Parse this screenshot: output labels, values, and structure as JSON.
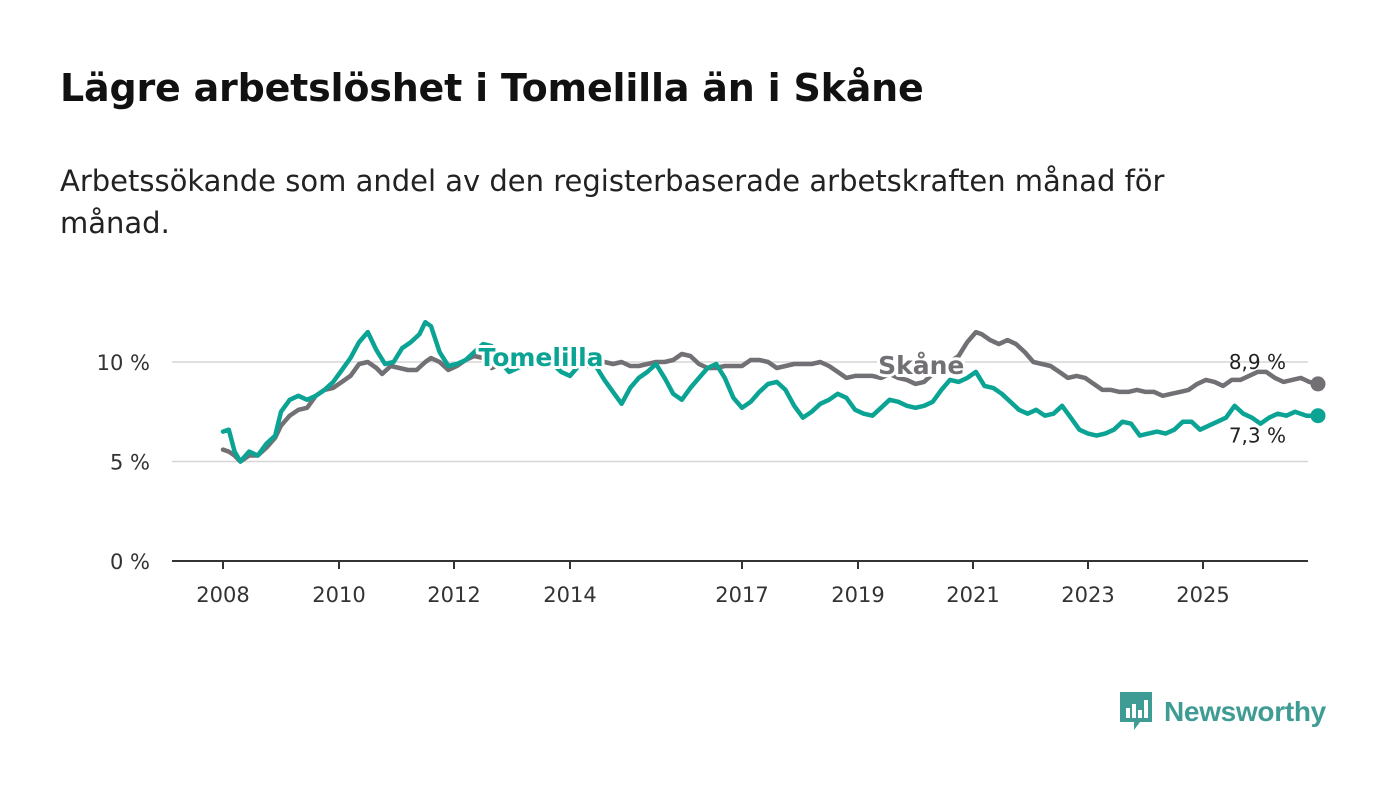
{
  "title": "Lägre arbetslöshet i Tomelilla än i Skåne",
  "subtitle": "Arbetssökande som andel av den registerbaserade arbetskraften månad för månad.",
  "brand": {
    "name": "Newsworthy",
    "icon": "newsworthy-logo-icon",
    "color": "#3f9c95"
  },
  "chart_data": {
    "type": "line",
    "title": "Lägre arbetslöshet i Tomelilla än i Skåne",
    "subtitle": "Arbetssökande som andel av den registerbaserade arbetskraften månad för månad.",
    "xlabel": "",
    "ylabel": "",
    "xlim": [
      2008,
      2026
    ],
    "ylim": [
      0,
      12.5
    ],
    "y_ticks": [
      0,
      5,
      10
    ],
    "y_tick_labels": [
      "0 %",
      "5 %",
      "10 %"
    ],
    "x_ticks": [
      2008,
      2010,
      2012,
      2014,
      2017,
      2019,
      2021,
      2023,
      2025
    ],
    "x_tick_labels": [
      "2008",
      "2010",
      "2012",
      "2014",
      "2017",
      "2019",
      "2021",
      "2023",
      "2025"
    ],
    "grid": true,
    "series": [
      {
        "name": "Skåne",
        "color": "#727074",
        "end_label": "8,9 %",
        "points": [
          [
            2008.0,
            5.6
          ],
          [
            2008.1,
            5.5
          ],
          [
            2008.2,
            5.3
          ],
          [
            2008.3,
            5.0
          ],
          [
            2008.45,
            5.3
          ],
          [
            2008.6,
            5.3
          ],
          [
            2008.75,
            5.7
          ],
          [
            2008.9,
            6.2
          ],
          [
            2009.0,
            6.8
          ],
          [
            2009.15,
            7.3
          ],
          [
            2009.3,
            7.6
          ],
          [
            2009.45,
            7.7
          ],
          [
            2009.6,
            8.3
          ],
          [
            2009.75,
            8.6
          ],
          [
            2009.9,
            8.7
          ],
          [
            2010.05,
            9.0
          ],
          [
            2010.2,
            9.3
          ],
          [
            2010.35,
            9.9
          ],
          [
            2010.5,
            10.0
          ],
          [
            2010.65,
            9.7
          ],
          [
            2010.75,
            9.4
          ],
          [
            2010.9,
            9.8
          ],
          [
            2011.05,
            9.7
          ],
          [
            2011.2,
            9.6
          ],
          [
            2011.35,
            9.6
          ],
          [
            2011.5,
            10.0
          ],
          [
            2011.6,
            10.2
          ],
          [
            2011.75,
            10.0
          ],
          [
            2011.9,
            9.6
          ],
          [
            2012.05,
            9.8
          ],
          [
            2012.2,
            10.1
          ],
          [
            2012.35,
            10.3
          ],
          [
            2012.5,
            10.2
          ],
          [
            2012.65,
            9.7
          ],
          [
            2012.8,
            9.9
          ],
          [
            2012.95,
            10.1
          ],
          [
            2013.1,
            10.2
          ],
          [
            2013.25,
            10.3
          ],
          [
            2013.4,
            10.2
          ],
          [
            2013.55,
            10.0
          ],
          [
            2013.7,
            10.1
          ],
          [
            2013.85,
            10.2
          ],
          [
            2014.0,
            10.0
          ],
          [
            2014.15,
            10.0
          ],
          [
            2014.3,
            9.8
          ],
          [
            2014.45,
            9.9
          ],
          [
            2014.6,
            10.0
          ],
          [
            2014.75,
            9.9
          ],
          [
            2014.9,
            10.0
          ],
          [
            2015.05,
            9.8
          ],
          [
            2015.2,
            9.8
          ],
          [
            2015.35,
            9.9
          ],
          [
            2015.5,
            10.0
          ],
          [
            2015.65,
            10.0
          ],
          [
            2015.8,
            10.1
          ],
          [
            2015.95,
            10.4
          ],
          [
            2016.1,
            10.3
          ],
          [
            2016.25,
            9.9
          ],
          [
            2016.4,
            9.7
          ],
          [
            2016.55,
            9.7
          ],
          [
            2016.7,
            9.8
          ],
          [
            2016.85,
            9.8
          ],
          [
            2017.0,
            9.8
          ],
          [
            2017.15,
            10.1
          ],
          [
            2017.3,
            10.1
          ],
          [
            2017.45,
            10.0
          ],
          [
            2017.6,
            9.7
          ],
          [
            2017.75,
            9.8
          ],
          [
            2017.9,
            9.9
          ],
          [
            2018.05,
            9.9
          ],
          [
            2018.2,
            9.9
          ],
          [
            2018.35,
            10.0
          ],
          [
            2018.5,
            9.8
          ],
          [
            2018.65,
            9.5
          ],
          [
            2018.8,
            9.2
          ],
          [
            2018.95,
            9.3
          ],
          [
            2019.1,
            9.3
          ],
          [
            2019.25,
            9.3
          ],
          [
            2019.4,
            9.2
          ],
          [
            2019.55,
            9.4
          ],
          [
            2019.7,
            9.2
          ],
          [
            2019.85,
            9.1
          ],
          [
            2020.0,
            8.9
          ],
          [
            2020.15,
            9.0
          ],
          [
            2020.3,
            9.4
          ],
          [
            2020.45,
            9.7
          ],
          [
            2020.6,
            10.0
          ],
          [
            2020.75,
            10.3
          ],
          [
            2020.9,
            11.0
          ],
          [
            2021.05,
            11.5
          ],
          [
            2021.15,
            11.4
          ],
          [
            2021.3,
            11.1
          ],
          [
            2021.45,
            10.9
          ],
          [
            2021.6,
            11.1
          ],
          [
            2021.75,
            10.9
          ],
          [
            2021.9,
            10.5
          ],
          [
            2022.05,
            10.0
          ],
          [
            2022.2,
            9.9
          ],
          [
            2022.35,
            9.8
          ],
          [
            2022.5,
            9.5
          ],
          [
            2022.65,
            9.2
          ],
          [
            2022.8,
            9.3
          ],
          [
            2022.95,
            9.2
          ],
          [
            2023.1,
            8.9
          ],
          [
            2023.25,
            8.6
          ],
          [
            2023.4,
            8.6
          ],
          [
            2023.55,
            8.5
          ],
          [
            2023.7,
            8.5
          ],
          [
            2023.85,
            8.6
          ],
          [
            2024.0,
            8.5
          ],
          [
            2024.15,
            8.5
          ],
          [
            2024.3,
            8.3
          ],
          [
            2024.45,
            8.4
          ],
          [
            2024.6,
            8.5
          ],
          [
            2024.75,
            8.6
          ],
          [
            2024.9,
            8.9
          ],
          [
            2025.05,
            9.1
          ],
          [
            2025.2,
            9.0
          ],
          [
            2025.35,
            8.8
          ],
          [
            2025.5,
            9.1
          ],
          [
            2025.65,
            9.1
          ],
          [
            2025.8,
            9.3
          ],
          [
            2025.95,
            9.5
          ],
          [
            2026.1,
            9.5
          ],
          [
            2026.25,
            9.2
          ],
          [
            2026.4,
            9.0
          ],
          [
            2026.55,
            9.1
          ],
          [
            2026.7,
            9.2
          ],
          [
            2026.85,
            9.0
          ],
          [
            2027.0,
            8.9
          ]
        ]
      },
      {
        "name": "Tomelilla",
        "color": "#0aa394",
        "end_label": "7,3 %",
        "points": [
          [
            2008.0,
            6.5
          ],
          [
            2008.1,
            6.6
          ],
          [
            2008.2,
            5.5
          ],
          [
            2008.3,
            5.0
          ],
          [
            2008.45,
            5.5
          ],
          [
            2008.6,
            5.3
          ],
          [
            2008.75,
            5.9
          ],
          [
            2008.9,
            6.3
          ],
          [
            2009.0,
            7.5
          ],
          [
            2009.15,
            8.1
          ],
          [
            2009.3,
            8.3
          ],
          [
            2009.45,
            8.1
          ],
          [
            2009.6,
            8.3
          ],
          [
            2009.75,
            8.6
          ],
          [
            2009.9,
            9.0
          ],
          [
            2010.05,
            9.6
          ],
          [
            2010.2,
            10.2
          ],
          [
            2010.35,
            11.0
          ],
          [
            2010.5,
            11.5
          ],
          [
            2010.65,
            10.6
          ],
          [
            2010.8,
            9.9
          ],
          [
            2010.95,
            10.0
          ],
          [
            2011.1,
            10.7
          ],
          [
            2011.25,
            11.0
          ],
          [
            2011.4,
            11.4
          ],
          [
            2011.5,
            12.0
          ],
          [
            2011.6,
            11.8
          ],
          [
            2011.75,
            10.5
          ],
          [
            2011.9,
            9.8
          ],
          [
            2012.05,
            9.9
          ],
          [
            2012.2,
            10.1
          ],
          [
            2012.35,
            10.5
          ],
          [
            2012.5,
            10.9
          ],
          [
            2012.65,
            10.8
          ],
          [
            2012.8,
            10.0
          ],
          [
            2012.95,
            9.5
          ],
          [
            2013.1,
            9.7
          ],
          [
            2013.25,
            9.9
          ],
          [
            2013.4,
            10.0
          ],
          [
            2013.55,
            10.4
          ],
          [
            2013.7,
            9.9
          ],
          [
            2013.85,
            9.5
          ],
          [
            2014.0,
            9.3
          ],
          [
            2014.15,
            9.8
          ],
          [
            2014.3,
            10.0
          ],
          [
            2014.45,
            9.8
          ],
          [
            2014.6,
            9.1
          ],
          [
            2014.75,
            8.5
          ],
          [
            2014.9,
            7.9
          ],
          [
            2015.05,
            8.7
          ],
          [
            2015.2,
            9.2
          ],
          [
            2015.35,
            9.5
          ],
          [
            2015.5,
            9.9
          ],
          [
            2015.65,
            9.2
          ],
          [
            2015.8,
            8.4
          ],
          [
            2015.95,
            8.1
          ],
          [
            2016.1,
            8.7
          ],
          [
            2016.25,
            9.2
          ],
          [
            2016.4,
            9.7
          ],
          [
            2016.55,
            9.9
          ],
          [
            2016.7,
            9.2
          ],
          [
            2016.85,
            8.2
          ],
          [
            2017.0,
            7.7
          ],
          [
            2017.15,
            8.0
          ],
          [
            2017.3,
            8.5
          ],
          [
            2017.45,
            8.9
          ],
          [
            2017.6,
            9.0
          ],
          [
            2017.75,
            8.6
          ],
          [
            2017.9,
            7.8
          ],
          [
            2018.05,
            7.2
          ],
          [
            2018.2,
            7.5
          ],
          [
            2018.35,
            7.9
          ],
          [
            2018.5,
            8.1
          ],
          [
            2018.65,
            8.4
          ],
          [
            2018.8,
            8.2
          ],
          [
            2018.95,
            7.6
          ],
          [
            2019.1,
            7.4
          ],
          [
            2019.25,
            7.3
          ],
          [
            2019.4,
            7.7
          ],
          [
            2019.55,
            8.1
          ],
          [
            2019.7,
            8.0
          ],
          [
            2019.85,
            7.8
          ],
          [
            2020.0,
            7.7
          ],
          [
            2020.15,
            7.8
          ],
          [
            2020.3,
            8.0
          ],
          [
            2020.45,
            8.6
          ],
          [
            2020.6,
            9.1
          ],
          [
            2020.75,
            9.0
          ],
          [
            2020.9,
            9.2
          ],
          [
            2021.05,
            9.5
          ],
          [
            2021.2,
            8.8
          ],
          [
            2021.35,
            8.7
          ],
          [
            2021.5,
            8.4
          ],
          [
            2021.65,
            8.0
          ],
          [
            2021.8,
            7.6
          ],
          [
            2021.95,
            7.4
          ],
          [
            2022.1,
            7.6
          ],
          [
            2022.25,
            7.3
          ],
          [
            2022.4,
            7.4
          ],
          [
            2022.55,
            7.8
          ],
          [
            2022.7,
            7.2
          ],
          [
            2022.85,
            6.6
          ],
          [
            2023.0,
            6.4
          ],
          [
            2023.15,
            6.3
          ],
          [
            2023.3,
            6.4
          ],
          [
            2023.45,
            6.6
          ],
          [
            2023.6,
            7.0
          ],
          [
            2023.75,
            6.9
          ],
          [
            2023.9,
            6.3
          ],
          [
            2024.05,
            6.4
          ],
          [
            2024.2,
            6.5
          ],
          [
            2024.35,
            6.4
          ],
          [
            2024.5,
            6.6
          ],
          [
            2024.65,
            7.0
          ],
          [
            2024.8,
            7.0
          ],
          [
            2024.95,
            6.6
          ],
          [
            2025.1,
            6.8
          ],
          [
            2025.25,
            7.0
          ],
          [
            2025.4,
            7.2
          ],
          [
            2025.55,
            7.8
          ],
          [
            2025.7,
            7.4
          ],
          [
            2025.85,
            7.2
          ],
          [
            2026.0,
            6.9
          ],
          [
            2026.15,
            7.2
          ],
          [
            2026.3,
            7.4
          ],
          [
            2026.45,
            7.3
          ],
          [
            2026.6,
            7.5
          ],
          [
            2026.8,
            7.3
          ],
          [
            2027.0,
            7.3
          ]
        ]
      }
    ]
  }
}
